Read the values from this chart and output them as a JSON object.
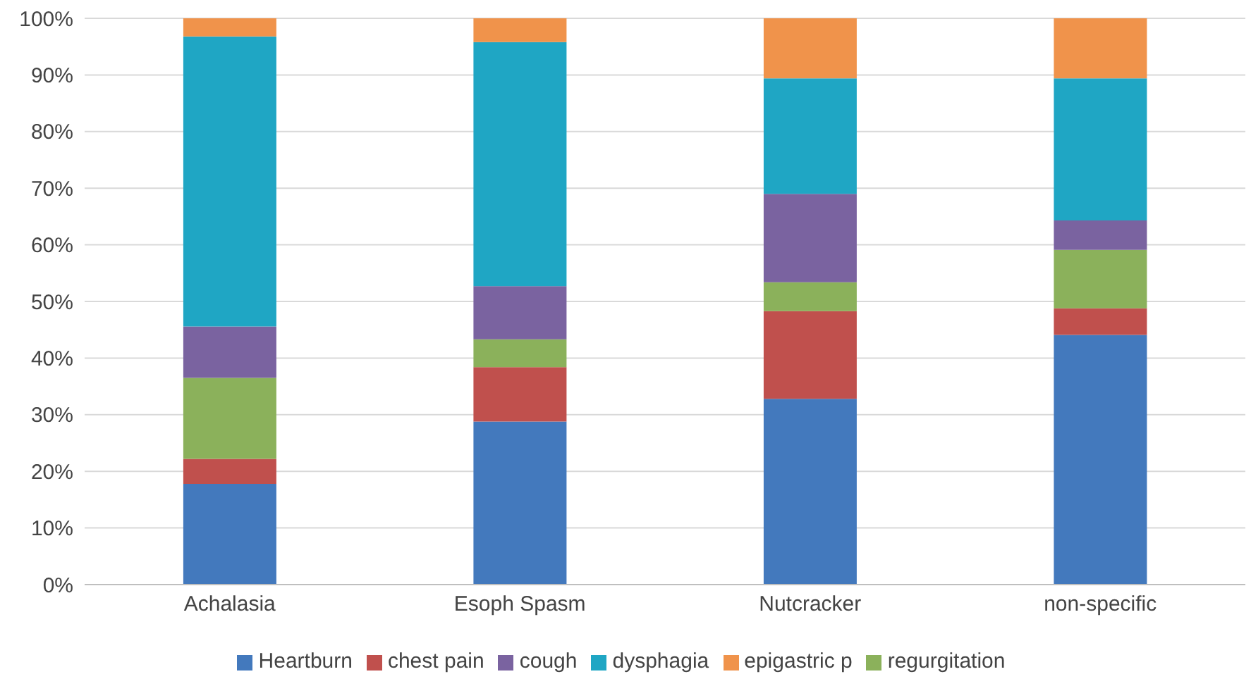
{
  "chart_data": {
    "type": "bar",
    "stacked": true,
    "categories": [
      "Achalasia",
      "Esoph Spasm",
      "Nutcracker",
      "non-specific"
    ],
    "series": [
      {
        "name": "Heartburn",
        "color": "#4379bd",
        "values": [
          17.8,
          28.8,
          32.8,
          44.1
        ]
      },
      {
        "name": "chest pain",
        "color": "#c0504d",
        "values": [
          4.4,
          9.6,
          15.5,
          4.7
        ]
      },
      {
        "name": "regurgitation",
        "color": "#8bb15b",
        "values": [
          14.3,
          4.9,
          5.1,
          10.3
        ]
      },
      {
        "name": "cough",
        "color": "#7a63a0",
        "values": [
          9.1,
          9.4,
          15.6,
          5.2
        ]
      },
      {
        "name": "dysphagia",
        "color": "#1fa6c4",
        "values": [
          51.2,
          43.1,
          20.4,
          25.1
        ]
      },
      {
        "name": "epigastric p",
        "color": "#f0934b",
        "values": [
          3.2,
          4.2,
          10.6,
          10.6
        ]
      }
    ],
    "ylim": [
      0,
      100
    ],
    "yticks": [
      {
        "value": 0,
        "label": "0%"
      },
      {
        "value": 10,
        "label": "10%"
      },
      {
        "value": 20,
        "label": "20%"
      },
      {
        "value": 30,
        "label": "30%"
      },
      {
        "value": 40,
        "label": "40%"
      },
      {
        "value": 50,
        "label": "50%"
      },
      {
        "value": 60,
        "label": "60%"
      },
      {
        "value": 70,
        "label": "70%"
      },
      {
        "value": 80,
        "label": "80%"
      },
      {
        "value": 90,
        "label": "90%"
      },
      {
        "value": 100,
        "label": "100%"
      }
    ],
    "grid": "y",
    "legend": "bottom"
  }
}
